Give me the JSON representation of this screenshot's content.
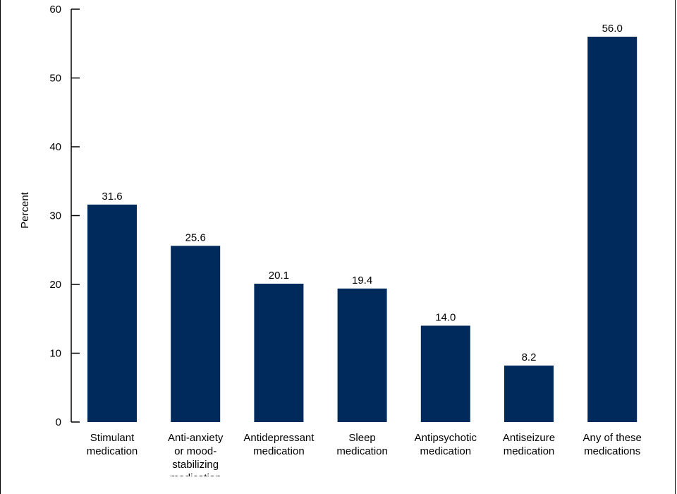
{
  "chart_data": {
    "type": "bar",
    "categories": [
      [
        "Stimulant",
        "medication"
      ],
      [
        "Anti-anxiety",
        "or mood-",
        "stabilizing",
        "medication"
      ],
      [
        "Antidepressant",
        "medication"
      ],
      [
        "Sleep",
        "medication"
      ],
      [
        "Antipsychotic",
        "medication"
      ],
      [
        "Antiseizure",
        "medication"
      ],
      [
        "Any of these",
        "medications"
      ]
    ],
    "values": [
      31.6,
      25.6,
      20.1,
      19.4,
      14.0,
      8.2,
      56.0
    ],
    "value_labels": [
      "31.6",
      "25.6",
      "20.1",
      "19.4",
      "14.0",
      "8.2",
      "56.0"
    ],
    "ylabel": "Percent",
    "ylim": [
      0,
      60
    ],
    "yticks": [
      0,
      10,
      20,
      30,
      40,
      50,
      60
    ],
    "bar_color": "#002a5c",
    "grid": false
  }
}
